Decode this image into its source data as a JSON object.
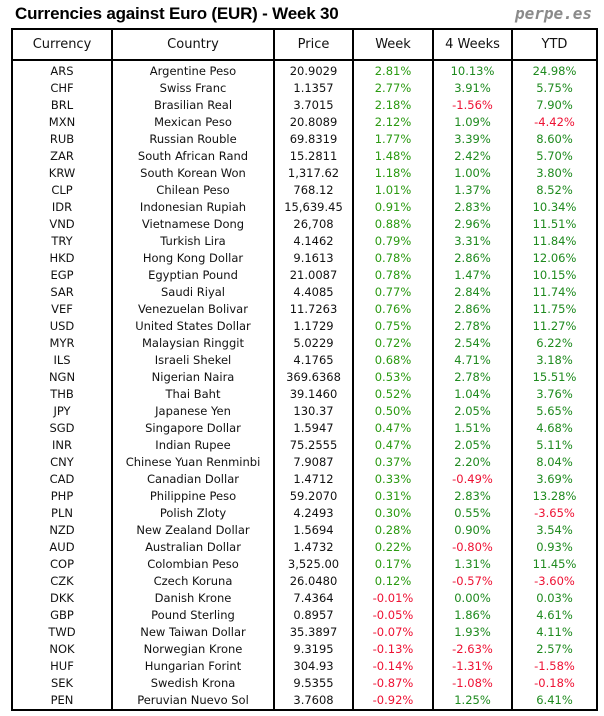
{
  "title": "Currencies against Euro (EUR) - Week 30",
  "brand": "perpe.es",
  "colors": {
    "positive": "#1e8a1e",
    "negative": "#ee1133"
  },
  "columns": [
    "Currency",
    "Country",
    "Price",
    "Week",
    "4 Weeks",
    "YTD"
  ],
  "rows": [
    [
      "ARS",
      "Argentine Peso",
      "20.9029",
      "2.81%",
      "10.13%",
      "24.98%"
    ],
    [
      "CHF",
      "Swiss Franc",
      "1.1357",
      "2.77%",
      "3.91%",
      "5.75%"
    ],
    [
      "BRL",
      "Brasilian Real",
      "3.7015",
      "2.18%",
      "-1.56%",
      "7.90%"
    ],
    [
      "MXN",
      "Mexican Peso",
      "20.8089",
      "2.12%",
      "1.09%",
      "-4.42%"
    ],
    [
      "RUB",
      "Russian Rouble",
      "69.8319",
      "1.77%",
      "3.39%",
      "8.60%"
    ],
    [
      "ZAR",
      "South African Rand",
      "15.2811",
      "1.48%",
      "2.42%",
      "5.70%"
    ],
    [
      "KRW",
      "South Korean Won",
      "1,317.62",
      "1.18%",
      "1.00%",
      "3.80%"
    ],
    [
      "CLP",
      "Chilean Peso",
      "768.12",
      "1.01%",
      "1.37%",
      "8.52%"
    ],
    [
      "IDR",
      "Indonesian Rupiah",
      "15,639.45",
      "0.91%",
      "2.83%",
      "10.34%"
    ],
    [
      "VND",
      "Vietnamese Dong",
      "26,708",
      "0.88%",
      "2.96%",
      "11.51%"
    ],
    [
      "TRY",
      "Turkish Lira",
      "4.1462",
      "0.79%",
      "3.31%",
      "11.84%"
    ],
    [
      "HKD",
      "Hong Kong Dollar",
      "9.1613",
      "0.78%",
      "2.86%",
      "12.06%"
    ],
    [
      "EGP",
      "Egyptian Pound",
      "21.0087",
      "0.78%",
      "1.47%",
      "10.15%"
    ],
    [
      "SAR",
      "Saudi Riyal",
      "4.4085",
      "0.77%",
      "2.84%",
      "11.74%"
    ],
    [
      "VEF",
      "Venezuelan Bolivar",
      "11.7263",
      "0.76%",
      "2.86%",
      "11.75%"
    ],
    [
      "USD",
      "United States Dollar",
      "1.1729",
      "0.75%",
      "2.78%",
      "11.27%"
    ],
    [
      "MYR",
      "Malaysian Ringgit",
      "5.0229",
      "0.72%",
      "2.54%",
      "6.22%"
    ],
    [
      "ILS",
      "Israeli Shekel",
      "4.1765",
      "0.68%",
      "4.71%",
      "3.18%"
    ],
    [
      "NGN",
      "Nigerian Naira",
      "369.6368",
      "0.53%",
      "2.78%",
      "15.51%"
    ],
    [
      "THB",
      "Thai Baht",
      "39.1460",
      "0.52%",
      "1.04%",
      "3.76%"
    ],
    [
      "JPY",
      "Japanese Yen",
      "130.37",
      "0.50%",
      "2.05%",
      "5.65%"
    ],
    [
      "SGD",
      "Singapore Dollar",
      "1.5947",
      "0.47%",
      "1.51%",
      "4.68%"
    ],
    [
      "INR",
      "Indian Rupee",
      "75.2555",
      "0.47%",
      "2.05%",
      "5.11%"
    ],
    [
      "CNY",
      "Chinese Yuan Renminbi",
      "7.9087",
      "0.37%",
      "2.20%",
      "8.04%"
    ],
    [
      "CAD",
      "Canadian Dollar",
      "1.4712",
      "0.33%",
      "-0.49%",
      "3.69%"
    ],
    [
      "PHP",
      "Philippine Peso",
      "59.2070",
      "0.31%",
      "2.83%",
      "13.28%"
    ],
    [
      "PLN",
      "Polish Zloty",
      "4.2493",
      "0.30%",
      "0.55%",
      "-3.65%"
    ],
    [
      "NZD",
      "New Zealand Dollar",
      "1.5694",
      "0.28%",
      "0.90%",
      "3.54%"
    ],
    [
      "AUD",
      "Australian Dollar",
      "1.4732",
      "0.22%",
      "-0.80%",
      "0.93%"
    ],
    [
      "COP",
      "Colombian Peso",
      "3,525.00",
      "0.17%",
      "1.31%",
      "11.45%"
    ],
    [
      "CZK",
      "Czech Koruna",
      "26.0480",
      "0.12%",
      "-0.57%",
      "-3.60%"
    ],
    [
      "DKK",
      "Danish Krone",
      "7.4364",
      "-0.01%",
      "0.00%",
      "0.03%"
    ],
    [
      "GBP",
      "Pound Sterling",
      "0.8957",
      "-0.05%",
      "1.86%",
      "4.61%"
    ],
    [
      "TWD",
      "New Taiwan Dollar",
      "35.3897",
      "-0.07%",
      "1.93%",
      "4.11%"
    ],
    [
      "NOK",
      "Norwegian Krone",
      "9.3195",
      "-0.13%",
      "-2.63%",
      "2.57%"
    ],
    [
      "HUF",
      "Hungarian Forint",
      "304.93",
      "-0.14%",
      "-1.31%",
      "-1.58%"
    ],
    [
      "SEK",
      "Swedish Krona",
      "9.5355",
      "-0.87%",
      "-1.08%",
      "-0.18%"
    ],
    [
      "PEN",
      "Peruvian Nuevo Sol",
      "3.7608",
      "-0.92%",
      "1.25%",
      "6.41%"
    ]
  ]
}
